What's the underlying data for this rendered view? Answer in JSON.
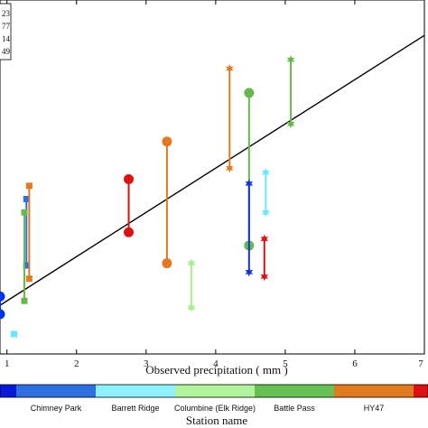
{
  "chart_data": {
    "type": "scatter",
    "xlabel": "Observed precipitation ( mm )",
    "xlim": [
      0.9,
      7.0
    ],
    "ylim": [
      -0.2,
      7.8
    ],
    "x_ticks": [
      "1",
      "2",
      "3",
      "4",
      "5",
      "6",
      "7"
    ],
    "x_tick_values": [
      1,
      2,
      3,
      4,
      5,
      6,
      7
    ],
    "reference_line": {
      "from": [
        0.9,
        0.9
      ],
      "to": [
        7.0,
        7.0
      ],
      "color": "#000000"
    },
    "legend_fragments": [
      "23",
      "77",
      "14",
      "49"
    ],
    "ranges": [
      {
        "station": "Chimney Park",
        "x": 0.9,
        "y_low": 0.7,
        "y_high": 1.1,
        "color": "#0033ee",
        "marker": "circle"
      },
      {
        "station": "Barrett Ridge",
        "x": 1.1,
        "y_low": 0.25,
        "y_high": 0.25,
        "color": "#66e8ff",
        "marker": "square"
      },
      {
        "station": "Chimney Park",
        "x": 1.28,
        "y_low": 1.8,
        "y_high": 3.3,
        "color": "#2f6fe0",
        "marker": "square"
      },
      {
        "station": "Battle Pass",
        "x": 1.25,
        "y_low": 1.0,
        "y_high": 3.0,
        "color": "#66b84c",
        "marker": "square"
      },
      {
        "station": "HY47",
        "x": 1.32,
        "y_low": 1.5,
        "y_high": 3.6,
        "color": "#e07b22",
        "marker": "square"
      },
      {
        "station": "HY47",
        "x": 2.75,
        "y_low": 2.55,
        "y_high": 3.75,
        "color": "#dd1111",
        "marker": "circle"
      },
      {
        "station": "HY47",
        "x": 3.3,
        "y_low": 1.85,
        "y_high": 4.6,
        "color": "#e07b22",
        "marker": "circle"
      },
      {
        "station": "Columbine (Elk Ridge)",
        "x": 3.65,
        "y_low": 0.85,
        "y_high": 1.85,
        "color": "#a6f08a",
        "marker": "star"
      },
      {
        "station": "HY47",
        "x": 4.2,
        "y_low": 4.0,
        "y_high": 6.25,
        "color": "#e07b22",
        "marker": "star"
      },
      {
        "station": "Battle Pass",
        "x": 4.48,
        "y_low": 2.25,
        "y_high": 5.7,
        "color": "#66b84c",
        "marker": "circle"
      },
      {
        "station": "Chimney Park",
        "x": 4.48,
        "y_low": 1.65,
        "y_high": 3.65,
        "color": "#1133dd",
        "marker": "star"
      },
      {
        "station": "Barrett Ridge",
        "x": 4.72,
        "y_low": 3.0,
        "y_high": 3.9,
        "color": "#66e8ff",
        "marker": "star"
      },
      {
        "station": "HY47",
        "x": 4.7,
        "y_low": 1.55,
        "y_high": 2.4,
        "color": "#dd1111",
        "marker": "star"
      },
      {
        "station": "Battle Pass",
        "x": 5.08,
        "y_low": 5.0,
        "y_high": 6.45,
        "color": "#66b84c",
        "marker": "star"
      }
    ],
    "colorbar": {
      "title": "Station name",
      "segments": [
        {
          "label": "",
          "color": "#0a18d8"
        },
        {
          "label": "Chimney Park",
          "color": "#2f6fe0"
        },
        {
          "label": "Barrett Ridge",
          "color": "#8ff0ff"
        },
        {
          "label": "Columbine (Elk Ridge)",
          "color": "#b2f49b"
        },
        {
          "label": "Battle Pass",
          "color": "#67c152"
        },
        {
          "label": "HY47",
          "color": "#e07b22"
        },
        {
          "label": "",
          "color": "#dd1111"
        }
      ]
    }
  }
}
